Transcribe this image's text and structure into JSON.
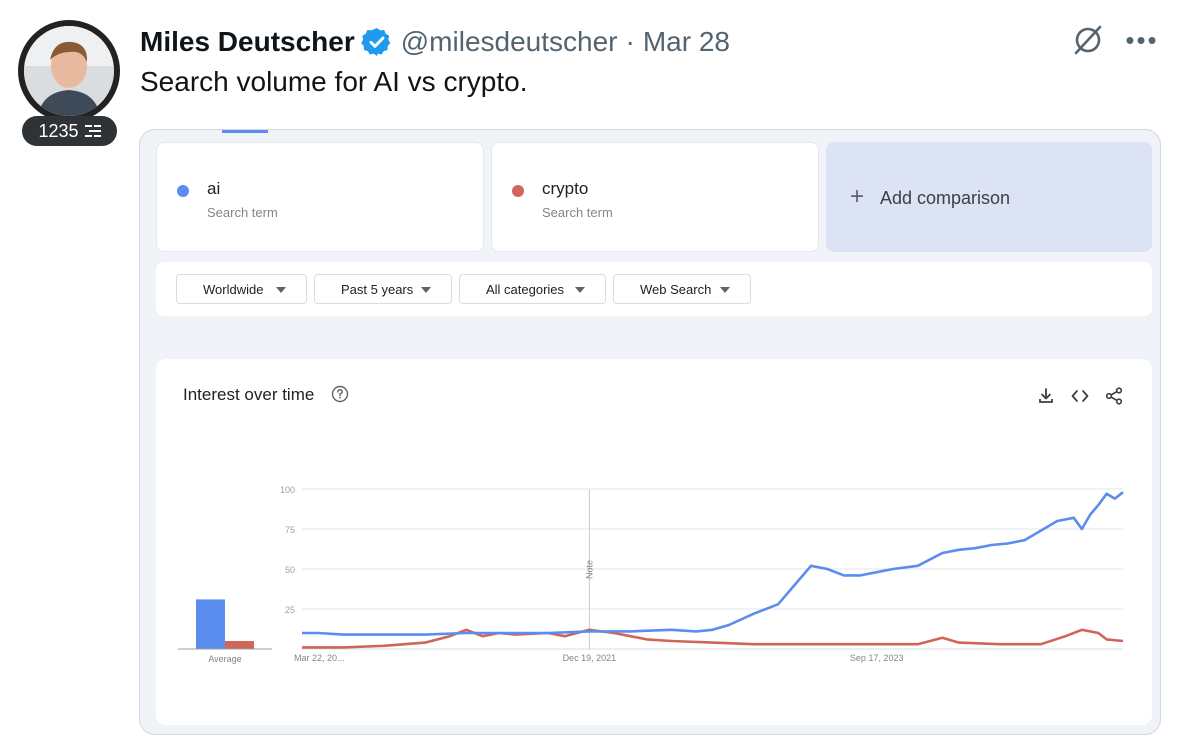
{
  "tweet": {
    "author_name": "Miles Deutscher",
    "handle": "@milesdeutscher",
    "separator": "·",
    "date": "Mar 28",
    "text": "Search volume for AI vs crypto.",
    "badge_count": "1235"
  },
  "colors": {
    "ai": "#5b8def",
    "crypto": "#d0655a",
    "verified": "#1d9bf0"
  },
  "trends": {
    "terms": [
      {
        "name": "ai",
        "sub": "Search term",
        "color": "#5b8def"
      },
      {
        "name": "crypto",
        "sub": "Search term",
        "color": "#d0655a"
      }
    ],
    "add_comparison": "Add comparison",
    "filters": [
      "Worldwide",
      "Past 5 years",
      "All categories",
      "Web Search"
    ],
    "chart_title": "Interest over time",
    "average_label": "Average",
    "note_label": "Note"
  },
  "chart_data": {
    "type": "line",
    "title": "Interest over time",
    "ylim": [
      0,
      100
    ],
    "yticks": [
      "100",
      "75",
      "50",
      "25"
    ],
    "xtick_labels": [
      {
        "label": "Mar 22, 20...",
        "t": 0.0
      },
      {
        "label": "Dec 19, 2021",
        "t": 0.35
      },
      {
        "label": "Sep 17, 2023",
        "t": 0.7
      }
    ],
    "note_t": 0.35,
    "averages": [
      {
        "name": "ai",
        "value": 31
      },
      {
        "name": "crypto",
        "value": 5
      }
    ],
    "series": [
      {
        "name": "ai",
        "points": [
          [
            0.0,
            10
          ],
          [
            0.02,
            10
          ],
          [
            0.05,
            9
          ],
          [
            0.1,
            9
          ],
          [
            0.15,
            9
          ],
          [
            0.2,
            10
          ],
          [
            0.25,
            10
          ],
          [
            0.3,
            10
          ],
          [
            0.35,
            11
          ],
          [
            0.4,
            11
          ],
          [
            0.45,
            12
          ],
          [
            0.48,
            11
          ],
          [
            0.5,
            12
          ],
          [
            0.52,
            15
          ],
          [
            0.55,
            22
          ],
          [
            0.58,
            28
          ],
          [
            0.6,
            40
          ],
          [
            0.62,
            52
          ],
          [
            0.64,
            50
          ],
          [
            0.66,
            46
          ],
          [
            0.68,
            46
          ],
          [
            0.7,
            48
          ],
          [
            0.72,
            50
          ],
          [
            0.75,
            52
          ],
          [
            0.78,
            60
          ],
          [
            0.8,
            62
          ],
          [
            0.82,
            63
          ],
          [
            0.84,
            65
          ],
          [
            0.86,
            66
          ],
          [
            0.88,
            68
          ],
          [
            0.9,
            74
          ],
          [
            0.92,
            80
          ],
          [
            0.94,
            82
          ],
          [
            0.95,
            75
          ],
          [
            0.96,
            84
          ],
          [
            0.97,
            90
          ],
          [
            0.98,
            97
          ],
          [
            0.99,
            94
          ],
          [
            1.0,
            98
          ]
        ]
      },
      {
        "name": "crypto",
        "points": [
          [
            0.0,
            1
          ],
          [
            0.05,
            1
          ],
          [
            0.1,
            2
          ],
          [
            0.15,
            4
          ],
          [
            0.18,
            8
          ],
          [
            0.2,
            12
          ],
          [
            0.22,
            8
          ],
          [
            0.24,
            10
          ],
          [
            0.26,
            9
          ],
          [
            0.3,
            10
          ],
          [
            0.32,
            8
          ],
          [
            0.35,
            12
          ],
          [
            0.38,
            10
          ],
          [
            0.4,
            8
          ],
          [
            0.42,
            6
          ],
          [
            0.45,
            5
          ],
          [
            0.5,
            4
          ],
          [
            0.55,
            3
          ],
          [
            0.6,
            3
          ],
          [
            0.65,
            3
          ],
          [
            0.7,
            3
          ],
          [
            0.75,
            3
          ],
          [
            0.78,
            7
          ],
          [
            0.8,
            4
          ],
          [
            0.85,
            3
          ],
          [
            0.9,
            3
          ],
          [
            0.93,
            8
          ],
          [
            0.95,
            12
          ],
          [
            0.97,
            10
          ],
          [
            0.98,
            6
          ],
          [
            1.0,
            5
          ]
        ]
      }
    ]
  }
}
